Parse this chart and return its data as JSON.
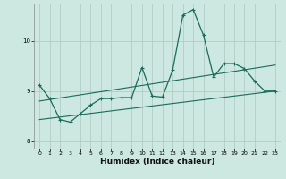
{
  "title": "",
  "xlabel": "Humidex (Indice chaleur)",
  "bg_color": "#cce8e0",
  "grid_color": "#b0cdc6",
  "line_color": "#1a6b5a",
  "xlim": [
    -0.5,
    23.5
  ],
  "ylim": [
    7.85,
    10.75
  ],
  "xticks": [
    0,
    1,
    2,
    3,
    4,
    5,
    6,
    7,
    8,
    9,
    10,
    11,
    12,
    13,
    14,
    15,
    16,
    17,
    18,
    19,
    20,
    21,
    22,
    23
  ],
  "yticks": [
    8,
    9,
    10
  ],
  "main_x": [
    0,
    1,
    2,
    3,
    4,
    5,
    6,
    7,
    8,
    9,
    10,
    11,
    12,
    13,
    14,
    15,
    16,
    17,
    18,
    19,
    20,
    21,
    22,
    23
  ],
  "main_y": [
    9.12,
    8.85,
    8.43,
    8.38,
    8.55,
    8.72,
    8.85,
    8.85,
    8.87,
    8.87,
    9.47,
    8.9,
    8.88,
    9.42,
    10.52,
    10.63,
    10.12,
    9.28,
    9.55,
    9.55,
    9.45,
    9.2,
    9.0,
    9.0
  ],
  "line2_x": [
    0,
    23
  ],
  "line2_y": [
    8.8,
    9.52
  ],
  "line3_x": [
    0,
    23
  ],
  "line3_y": [
    8.43,
    9.0
  ],
  "figsize": [
    3.2,
    2.0
  ],
  "dpi": 100
}
